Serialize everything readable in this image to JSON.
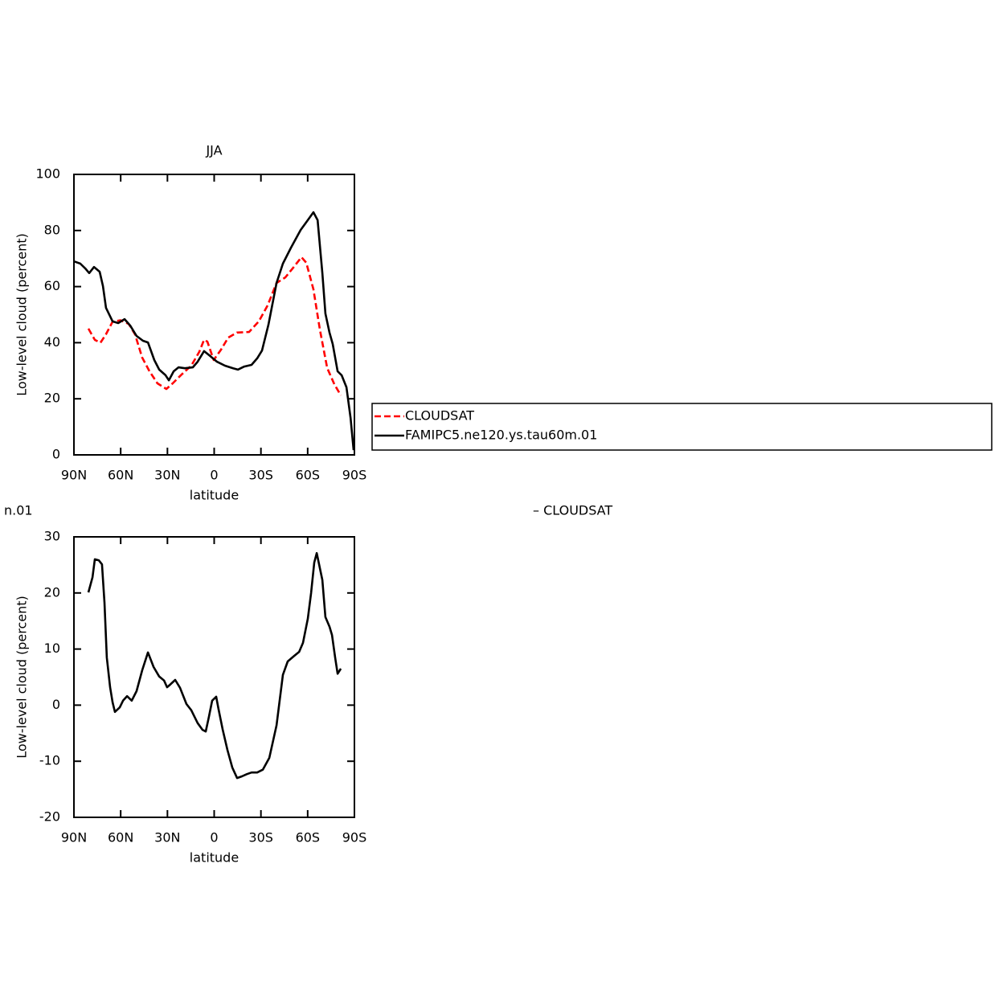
{
  "chart_data": [
    {
      "type": "line",
      "title": "JJA",
      "xlabel": "latitude",
      "ylabel": "Low-level cloud (percent)",
      "xlim": [
        90,
        -90
      ],
      "xticks": [
        {
          "value": 90,
          "label": "90N"
        },
        {
          "value": 60,
          "label": "60N"
        },
        {
          "value": 30,
          "label": "30N"
        },
        0,
        {
          "value": -30,
          "label": "30S"
        },
        {
          "value": -60,
          "label": "60S"
        },
        {
          "value": -90,
          "label": "90S"
        }
      ],
      "ylim": [
        0,
        100
      ],
      "yticks": [
        0,
        20,
        40,
        60,
        80,
        100
      ],
      "legend": "right",
      "series": [
        {
          "name": "CLOUDSAT",
          "color": "#ff0000",
          "dashed": true,
          "x": [
            80.7,
            76.6,
            73.0,
            69.4,
            65.2,
            60.1,
            54.9,
            50.8,
            46.2,
            41.5,
            36.4,
            30.7,
            26.6,
            21.4,
            14.7,
            9.6,
            6.5,
            4.4,
            0.3,
            -4.4,
            -9.0,
            -14.7,
            -22.4,
            -28.6,
            -34.3,
            -40.0,
            -45.7,
            -50.8,
            -56.0,
            -59.1,
            -63.7,
            -67.8,
            -72.5,
            -77.1,
            -81.3
          ],
          "values": [
            45,
            41,
            40,
            43,
            47.5,
            48,
            46.7,
            43,
            34.7,
            29.8,
            25.5,
            23.5,
            25.5,
            28.4,
            31.8,
            36.7,
            41,
            40.4,
            33.8,
            37.5,
            41.8,
            43.6,
            43.8,
            47.6,
            53.3,
            61.3,
            63.3,
            66.8,
            70.5,
            68.5,
            59,
            44.7,
            31,
            25.2,
            21.2
          ]
        },
        {
          "name": "FAMIPC5.ne120.ys.tau60m.01",
          "color": "#000000",
          "dashed": false,
          "x": [
            90,
            85.9,
            82.8,
            80.2,
            77.1,
            73.5,
            71.4,
            69.4,
            65.2,
            61.6,
            57.5,
            53.9,
            49.8,
            45.7,
            42.5,
            38.4,
            35.3,
            31.2,
            29.1,
            26.0,
            22.9,
            18.8,
            13.7,
            10.6,
            6.5,
            2.4,
            -1.8,
            -6.9,
            -12.1,
            -15.2,
            -19.3,
            -24.0,
            -27.6,
            -30.7,
            -34.8,
            -40.0,
            -44.1,
            -49.3,
            -55.5,
            -60.1,
            -63.7,
            -66.4,
            -69.4,
            -71.4,
            -74.0,
            -76.1,
            -79.2,
            -81.8,
            -84.9,
            -87.5,
            -89.5
          ],
          "values": [
            69,
            68.2,
            66.5,
            64.8,
            67,
            65.3,
            60.2,
            52.4,
            47.6,
            47,
            48.4,
            46.1,
            42.4,
            40.7,
            40.1,
            33.8,
            30.4,
            28.4,
            26.6,
            29.8,
            31.2,
            30.9,
            31.2,
            33.2,
            37,
            35.2,
            33.2,
            31.8,
            30.9,
            30.4,
            31.5,
            32.1,
            34.4,
            37.2,
            46.4,
            61.3,
            68.2,
            73.9,
            80.2,
            83.7,
            86.5,
            83.7,
            64.8,
            50.4,
            43.6,
            39.5,
            29.8,
            28.4,
            24.1,
            13.2,
            1.7
          ]
        }
      ]
    },
    {
      "type": "line",
      "title_left": "n.01",
      "title_right": "– CLOUDSAT",
      "xlabel": "latitude",
      "ylabel": "Low-level cloud (percent)",
      "xlim": [
        90,
        -90
      ],
      "xticks": [
        {
          "value": 90,
          "label": "90N"
        },
        {
          "value": 60,
          "label": "60N"
        },
        {
          "value": 30,
          "label": "30N"
        },
        0,
        {
          "value": -30,
          "label": "30S"
        },
        {
          "value": -60,
          "label": "60S"
        },
        {
          "value": -90,
          "label": "90S"
        }
      ],
      "ylim": [
        -20,
        30
      ],
      "yticks": [
        -20,
        -10,
        0,
        10,
        20,
        30
      ],
      "series": [
        {
          "color": "#000000",
          "dashed": false,
          "x": [
            80.7,
            78.1,
            76.6,
            74.0,
            72.0,
            70.4,
            68.9,
            66.8,
            65.2,
            63.7,
            60.6,
            58.5,
            55.9,
            52.9,
            49.8,
            46.2,
            42.5,
            38.9,
            35.3,
            32.2,
            30.2,
            28.1,
            25.0,
            21.9,
            17.8,
            14.7,
            10.6,
            7.5,
            5.4,
            3.4,
            1.3,
            -1.3,
            -2.8,
            -5.4,
            -8.5,
            -11.6,
            -14.7,
            -17.8,
            -20.9,
            -24.0,
            -27.6,
            -31.2,
            -35.4,
            -40.0,
            -44.1,
            -47.2,
            -51.4,
            -54.5,
            -57.0,
            -60.1,
            -62.2,
            -64.2,
            -65.8,
            -69.4,
            -71.4,
            -74.0,
            -75.6,
            -77.6,
            -79.2,
            -81.3
          ],
          "values": [
            20.1,
            22.8,
            26,
            25.8,
            25.1,
            18.3,
            8.5,
            3.2,
            0.5,
            -1.2,
            -0.4,
            0.8,
            1.6,
            0.8,
            2.5,
            6.2,
            9.4,
            6.8,
            5.1,
            4.4,
            3.2,
            3.7,
            4.5,
            3.1,
            0.2,
            -0.9,
            -3.2,
            -4.4,
            -4.7,
            -2.1,
            0.8,
            1.5,
            -0.7,
            -4.3,
            -8.0,
            -11.1,
            -13.0,
            -12.7,
            -12.3,
            -12.0,
            -12.0,
            -11.5,
            -9.4,
            -3.6,
            5.4,
            7.8,
            8.8,
            9.5,
            11.1,
            15.4,
            20.0,
            25.4,
            27.1,
            22.3,
            15.7,
            14.0,
            12.5,
            8.5,
            5.6,
            6.5
          ]
        }
      ]
    }
  ]
}
